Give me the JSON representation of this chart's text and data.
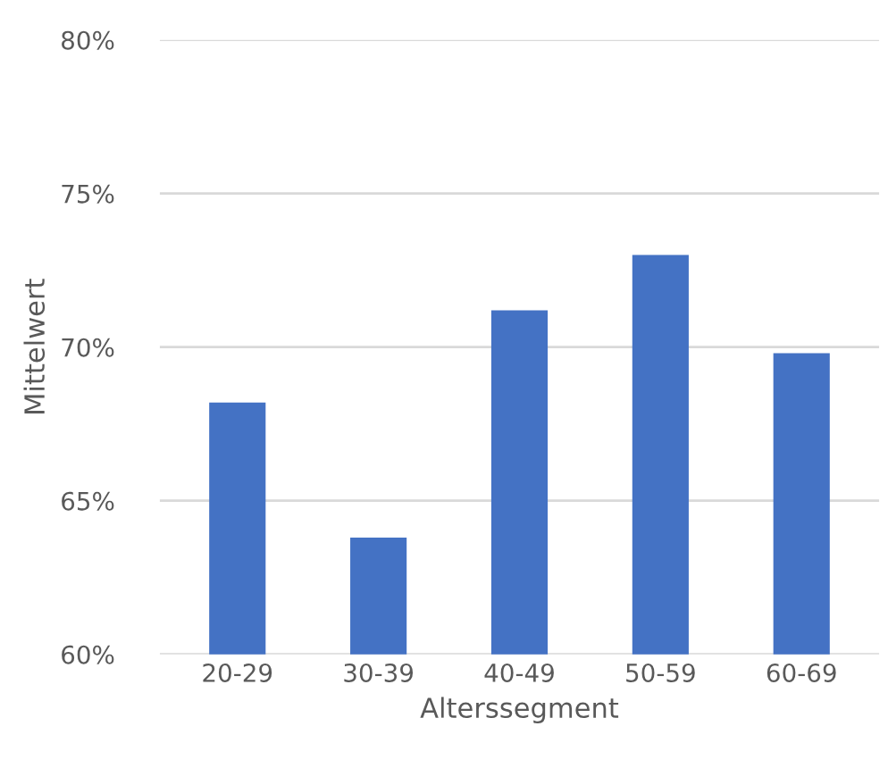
{
  "chart_data": {
    "type": "bar",
    "xlabel": "Alterssegment",
    "ylabel": "Mittelwert",
    "categories": [
      "20-29",
      "30-39",
      "40-49",
      "50-59",
      "60-69"
    ],
    "values": [
      68.2,
      63.8,
      71.2,
      73.0,
      69.8
    ],
    "color": "#4472c4",
    "ylim": [
      60,
      80
    ],
    "yticks": [
      {
        "value": 60,
        "label": "60%"
      },
      {
        "value": 65,
        "label": "65%"
      },
      {
        "value": 70,
        "label": "70%"
      },
      {
        "value": 75,
        "label": "75%"
      },
      {
        "value": 80,
        "label": "80%"
      }
    ],
    "grid": "y"
  }
}
